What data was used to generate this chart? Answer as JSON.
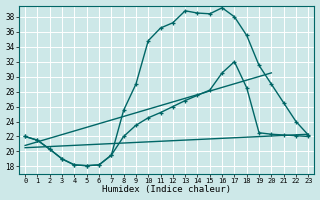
{
  "xlabel": "Humidex (Indice chaleur)",
  "bg_color": "#cde8e8",
  "grid_color": "#ffffff",
  "line_color": "#006666",
  "xlim": [
    -0.5,
    23.5
  ],
  "ylim": [
    17.0,
    39.5
  ],
  "yticks": [
    18,
    20,
    22,
    24,
    26,
    28,
    30,
    32,
    34,
    36,
    38
  ],
  "xticks": [
    0,
    1,
    2,
    3,
    4,
    5,
    6,
    7,
    8,
    9,
    10,
    11,
    12,
    13,
    14,
    15,
    16,
    17,
    18,
    19,
    20,
    21,
    22,
    23
  ],
  "curve1_x": [
    0,
    1,
    2,
    3,
    4,
    5,
    6,
    7,
    8,
    9,
    10,
    11,
    12,
    13,
    14,
    15,
    16,
    17,
    18,
    19,
    20,
    21,
    22,
    23
  ],
  "curve1_y": [
    22,
    21.5,
    20.3,
    19.0,
    18.2,
    18.1,
    18.2,
    19.5,
    25.5,
    29.0,
    34.8,
    36.5,
    37.2,
    38.8,
    38.5,
    38.4,
    39.2,
    38.0,
    35.5,
    31.5,
    29.0,
    26.5,
    24.0,
    22.2
  ],
  "curve2_x": [
    0,
    1,
    2,
    3,
    4,
    5,
    6,
    7,
    8,
    9,
    10,
    11,
    12,
    13,
    14,
    15,
    16,
    17,
    18,
    19,
    20,
    21,
    22,
    23
  ],
  "curve2_y": [
    22,
    21.5,
    20.3,
    19.0,
    18.2,
    18.1,
    18.2,
    19.5,
    22.0,
    23.5,
    24.5,
    25.2,
    26.0,
    26.8,
    27.5,
    28.2,
    30.5,
    32.0,
    28.5,
    22.5,
    22.3,
    22.2,
    22.1,
    22.0
  ],
  "line1_x": [
    0,
    23
  ],
  "line1_y": [
    20.5,
    22.3
  ],
  "line2_x": [
    0,
    20
  ],
  "line2_y": [
    20.8,
    30.5
  ]
}
